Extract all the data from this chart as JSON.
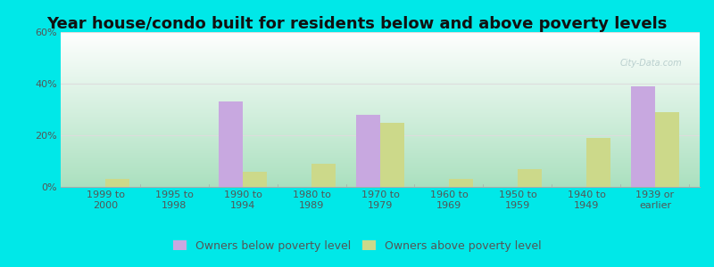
{
  "title": "Year house/condo built for residents below and above poverty levels",
  "categories": [
    "1999 to\n2000",
    "1995 to\n1998",
    "1990 to\n1994",
    "1980 to\n1989",
    "1970 to\n1979",
    "1960 to\n1969",
    "1950 to\n1959",
    "1940 to\n1949",
    "1939 or\nearlier"
  ],
  "below_poverty": [
    0,
    0,
    33,
    0,
    28,
    0,
    0,
    0,
    39
  ],
  "above_poverty": [
    3,
    0,
    6,
    9,
    25,
    3,
    7,
    19,
    29
  ],
  "below_color": "#c8a8e0",
  "above_color": "#ccd98a",
  "ylim": [
    0,
    60
  ],
  "yticks": [
    0,
    20,
    40,
    60
  ],
  "ytick_labels": [
    "0%",
    "20%",
    "40%",
    "60%"
  ],
  "legend_below": "Owners below poverty level",
  "legend_above": "Owners above poverty level",
  "bg_outer": "#00e8e8",
  "grid_color": "#dddddd",
  "title_fontsize": 13,
  "axis_fontsize": 8,
  "legend_fontsize": 9,
  "bar_width": 0.35,
  "watermark": "City-Data.com",
  "bg_grad_top_left": "#c8f0d8",
  "bg_grad_top_right": "#e8f8f0",
  "bg_grad_bottom_left": "#e0f8e8",
  "bg_grad_bottom_right": "#f8fff0"
}
